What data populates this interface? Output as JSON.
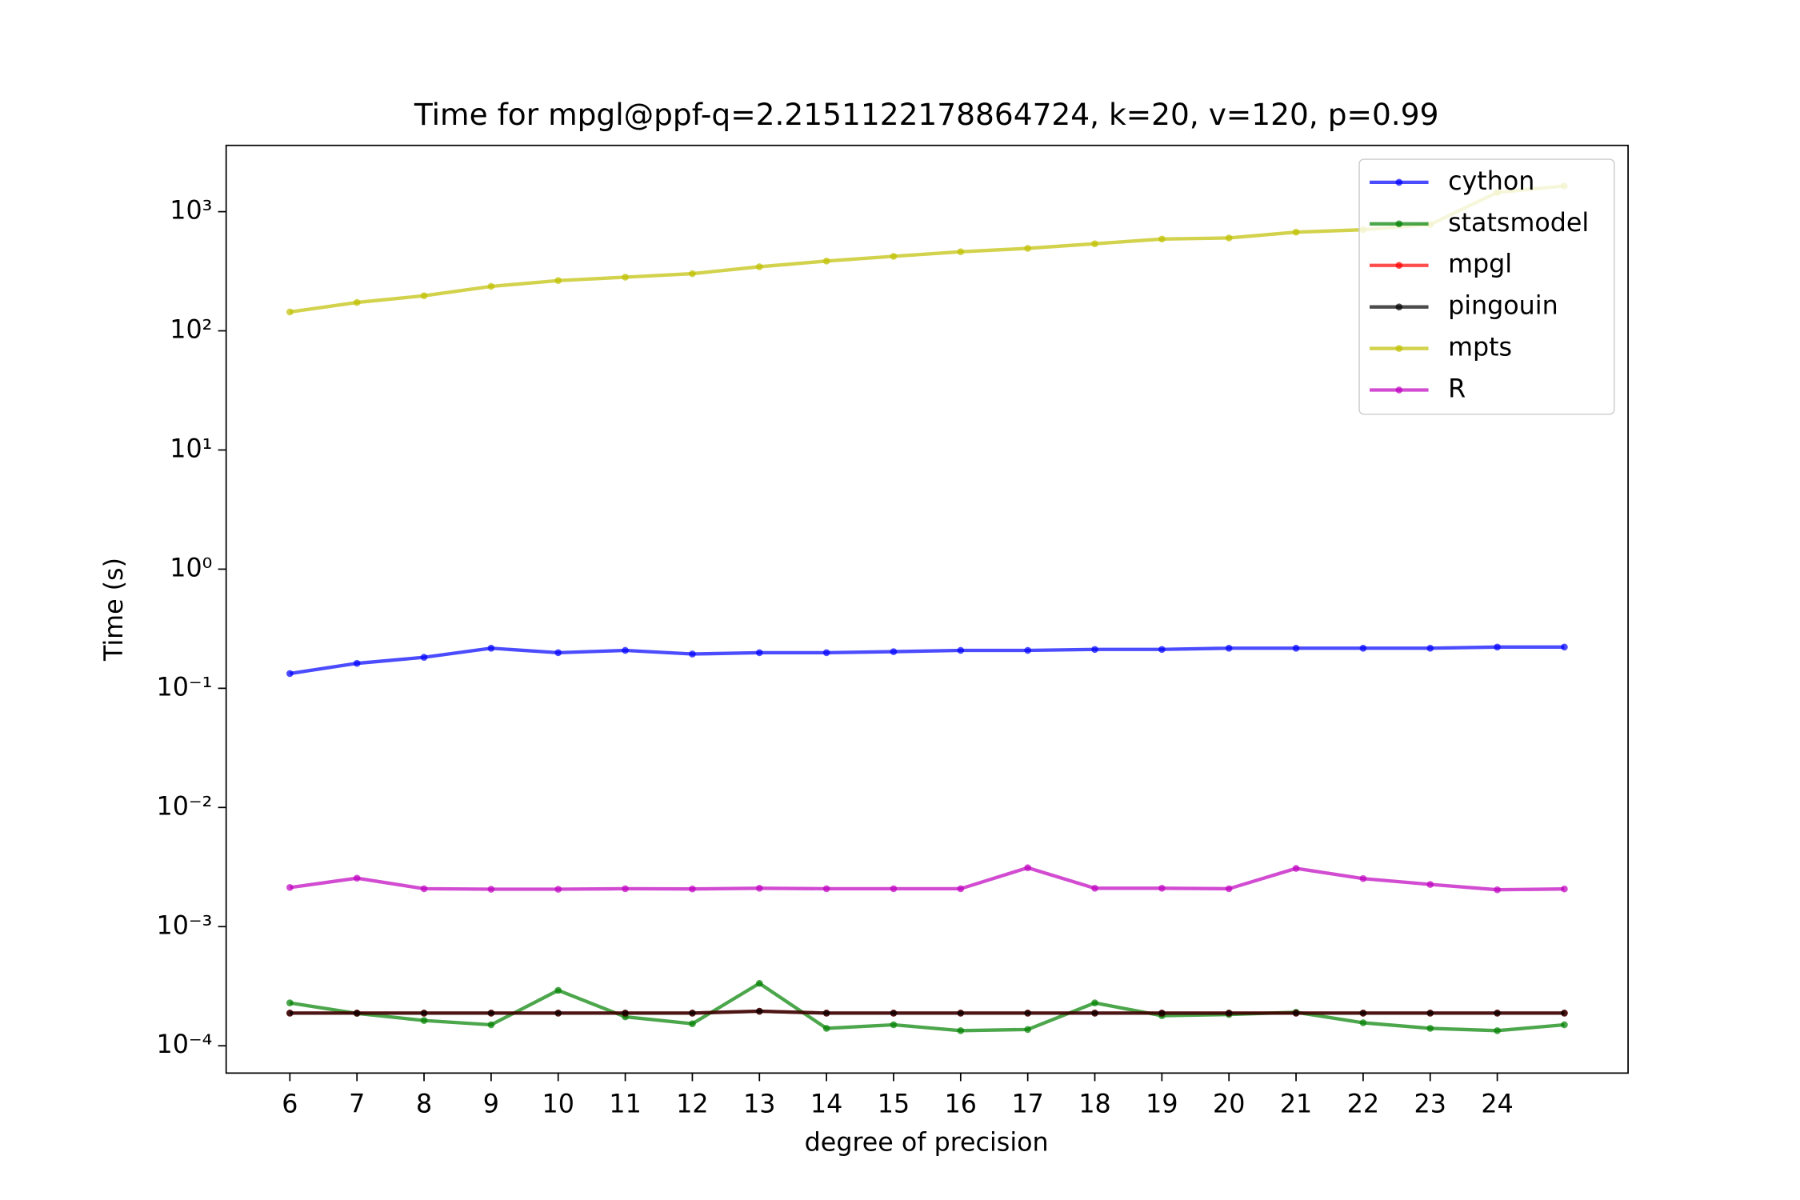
{
  "chart_data": {
    "type": "line",
    "title": "Time for mpgl@ppf-q=2.2151122178864724, k=20, v=120, p=0.99",
    "x_label": "degree of precision",
    "y_label": "Time (s)",
    "x": [
      6,
      7,
      8,
      9,
      10,
      11,
      12,
      13,
      14,
      15,
      16,
      17,
      18,
      19,
      20,
      21,
      22,
      23,
      24,
      25
    ],
    "xlim": [
      5.05,
      25.95
    ],
    "xticks": [
      6,
      7,
      8,
      9,
      10,
      11,
      12,
      13,
      14,
      15,
      16,
      17,
      18,
      19,
      20,
      21,
      22,
      23,
      24
    ],
    "ylim": [
      5.9e-05,
      3600
    ],
    "yscale": "log",
    "yticks": [
      {
        "value": 0.0001,
        "label": "10⁻⁴"
      },
      {
        "value": 0.001,
        "label": "10⁻³"
      },
      {
        "value": 0.01,
        "label": "10⁻²"
      },
      {
        "value": 0.1,
        "label": "10⁻¹"
      },
      {
        "value": 1,
        "label": "10⁰"
      },
      {
        "value": 10,
        "label": "10¹"
      },
      {
        "value": 100,
        "label": "10²"
      },
      {
        "value": 1000,
        "label": "10³"
      }
    ],
    "legend": "upper right",
    "alpha": 0.7,
    "series": [
      {
        "name": "cython",
        "color": "#0000ff",
        "values": [
          0.133,
          0.162,
          0.182,
          0.217,
          0.199,
          0.208,
          0.194,
          0.199,
          0.199,
          0.203,
          0.208,
          0.208,
          0.212,
          0.212,
          0.217,
          0.217,
          0.217,
          0.217,
          0.222,
          0.222
        ]
      },
      {
        "name": "statsmodel",
        "color": "#008000",
        "values": [
          0.000229,
          0.000187,
          0.000163,
          0.00015,
          0.000292,
          0.000175,
          0.000153,
          0.000334,
          0.00014,
          0.00015,
          0.000134,
          0.000137,
          0.000229,
          0.000179,
          0.000183,
          0.000191,
          0.000156,
          0.00014,
          0.000134,
          0.00015
        ]
      },
      {
        "name": "mpgl",
        "color": "#ff0000",
        "values": [
          0.000188,
          0.000188,
          0.000188,
          0.000188,
          0.000188,
          0.000188,
          0.000188,
          0.000195,
          0.000188,
          0.000188,
          0.000188,
          0.000188,
          0.000188,
          0.000188,
          0.000188,
          0.000188,
          0.000188,
          0.000188,
          0.000188,
          0.000188
        ]
      },
      {
        "name": "pingouin",
        "color": "#000000",
        "values": [
          0.000188,
          0.000188,
          0.000188,
          0.000188,
          0.000188,
          0.000188,
          0.000188,
          0.000195,
          0.000188,
          0.000188,
          0.000188,
          0.000188,
          0.000188,
          0.000188,
          0.000188,
          0.000188,
          0.000188,
          0.000188,
          0.000188,
          0.000188
        ]
      },
      {
        "name": "mpts",
        "color": "#bfbf00",
        "values": [
          144,
          173,
          197,
          236,
          264,
          282,
          302,
          345,
          385,
          422,
          461,
          492,
          538,
          589,
          602,
          673,
          705,
          780,
          1450,
          1645
        ]
      },
      {
        "name": "R",
        "color": "#bf00bf",
        "values": [
          0.00213,
          0.00255,
          0.00208,
          0.00206,
          0.00206,
          0.00208,
          0.00207,
          0.0021,
          0.00208,
          0.00208,
          0.00208,
          0.00312,
          0.0021,
          0.0021,
          0.00208,
          0.00308,
          0.00253,
          0.00226,
          0.00204,
          0.00207
        ]
      }
    ]
  }
}
